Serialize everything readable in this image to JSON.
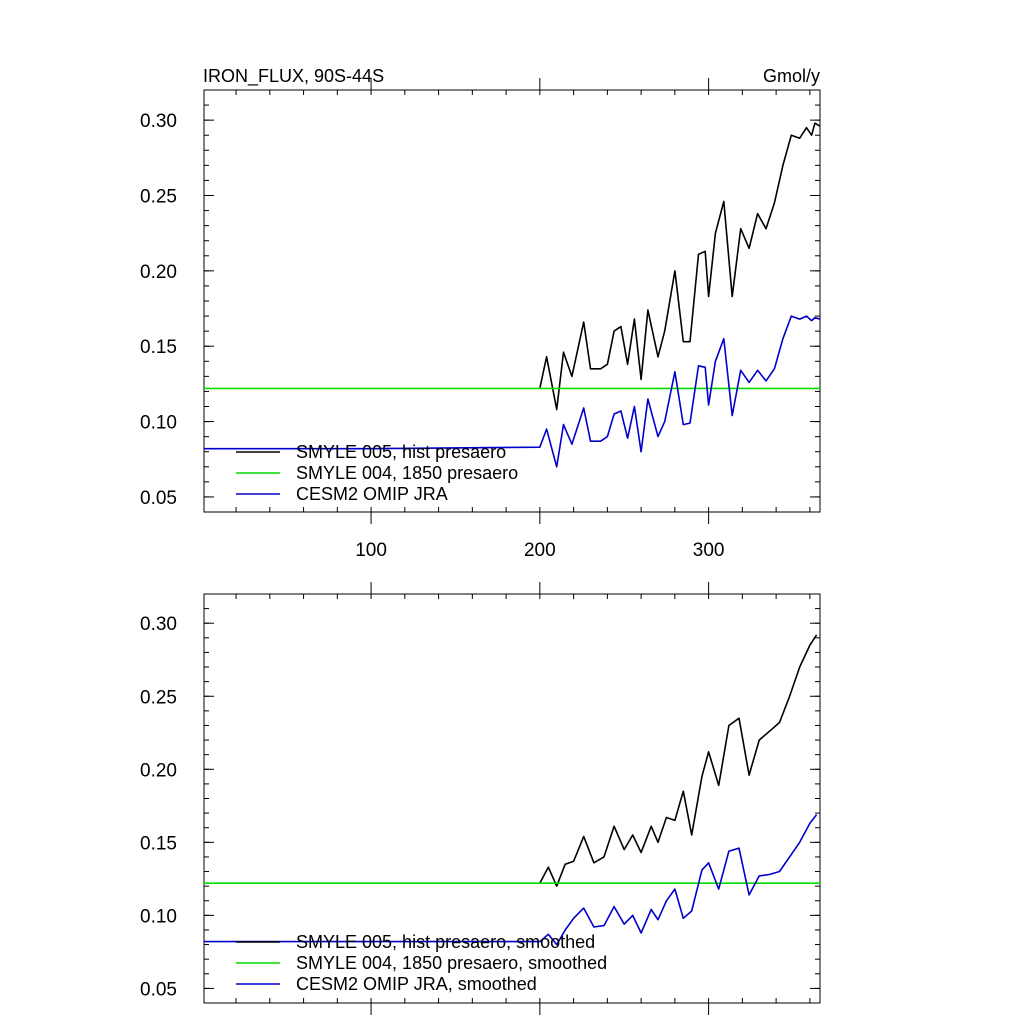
{
  "header": {
    "title": "IRON_FLUX, 90S-44S",
    "units": "Gmol/y"
  },
  "chart_data": [
    {
      "type": "line",
      "xlim": [
        1,
        366
      ],
      "ylim": [
        0.04,
        0.32
      ],
      "x_ticks": [
        100,
        200,
        300
      ],
      "x_tick_labels": [
        "100",
        "200",
        "300"
      ],
      "y_ticks": [
        0.05,
        0.1,
        0.15,
        0.2,
        0.25,
        0.3
      ],
      "y_tick_labels": [
        "0.05",
        "0.10",
        "0.15",
        "0.20",
        "0.25",
        "0.30"
      ],
      "grid": false,
      "legend_position": "bottom-left",
      "series": [
        {
          "name": "SMYLE 005, hist presaero",
          "color": "#000000",
          "x": [
            200,
            204,
            210,
            214,
            219,
            226,
            230,
            236,
            240,
            244,
            248,
            252,
            256,
            260,
            264,
            270,
            274,
            280,
            285,
            289,
            294,
            298,
            300,
            304,
            309,
            314,
            319,
            324,
            329,
            334,
            339,
            344,
            349,
            354,
            358,
            361,
            363,
            366
          ],
          "y": [
            0.122,
            0.143,
            0.108,
            0.146,
            0.13,
            0.166,
            0.135,
            0.135,
            0.138,
            0.16,
            0.163,
            0.138,
            0.168,
            0.128,
            0.174,
            0.143,
            0.16,
            0.2,
            0.153,
            0.153,
            0.211,
            0.213,
            0.183,
            0.225,
            0.246,
            0.183,
            0.228,
            0.215,
            0.238,
            0.228,
            0.245,
            0.27,
            0.29,
            0.288,
            0.295,
            0.29,
            0.298,
            0.296
          ]
        },
        {
          "name": "SMYLE 004, 1850 presaero",
          "color": "#00dd00",
          "x": [
            1,
            366
          ],
          "y": [
            0.122,
            0.122
          ]
        },
        {
          "name": "CESM2 OMIP JRA",
          "color": "#0000cc",
          "x": [
            1,
            100,
            200,
            204,
            210,
            214,
            219,
            226,
            230,
            236,
            240,
            244,
            248,
            252,
            256,
            260,
            264,
            270,
            274,
            280,
            285,
            289,
            294,
            298,
            300,
            304,
            309,
            314,
            319,
            324,
            329,
            334,
            339,
            344,
            349,
            354,
            358,
            361,
            363,
            366
          ],
          "y": [
            0.082,
            0.082,
            0.083,
            0.095,
            0.07,
            0.098,
            0.085,
            0.109,
            0.087,
            0.087,
            0.09,
            0.105,
            0.107,
            0.089,
            0.11,
            0.08,
            0.115,
            0.09,
            0.1,
            0.133,
            0.098,
            0.099,
            0.137,
            0.136,
            0.111,
            0.14,
            0.155,
            0.104,
            0.134,
            0.126,
            0.134,
            0.127,
            0.135,
            0.155,
            0.17,
            0.168,
            0.17,
            0.167,
            0.169,
            0.168
          ]
        }
      ]
    },
    {
      "type": "line",
      "xlim": [
        1,
        366
      ],
      "ylim": [
        0.04,
        0.32
      ],
      "x_ticks": [
        100,
        200,
        300
      ],
      "y_ticks": [
        0.05,
        0.1,
        0.15,
        0.2,
        0.25,
        0.3
      ],
      "y_tick_labels": [
        "0.05",
        "0.10",
        "0.15",
        "0.20",
        "0.25",
        "0.30"
      ],
      "grid": false,
      "legend_position": "bottom-left",
      "series": [
        {
          "name": "SMYLE 005, hist presaero, smoothed",
          "color": "#000000",
          "x": [
            200,
            205,
            210,
            215,
            220,
            226,
            232,
            238,
            244,
            250,
            255,
            260,
            266,
            270,
            275,
            280,
            285,
            290,
            296,
            300,
            306,
            312,
            318,
            324,
            330,
            336,
            342,
            348,
            354,
            360,
            364
          ],
          "y": [
            0.122,
            0.133,
            0.12,
            0.135,
            0.137,
            0.154,
            0.136,
            0.14,
            0.161,
            0.145,
            0.155,
            0.143,
            0.161,
            0.15,
            0.167,
            0.165,
            0.185,
            0.155,
            0.195,
            0.212,
            0.189,
            0.23,
            0.235,
            0.196,
            0.22,
            0.226,
            0.232,
            0.25,
            0.27,
            0.285,
            0.292
          ]
        },
        {
          "name": "SMYLE 004, 1850 presaero, smoothed",
          "color": "#00dd00",
          "x": [
            1,
            366
          ],
          "y": [
            0.122,
            0.122
          ]
        },
        {
          "name": "CESM2 OMIP JRA, smoothed",
          "color": "#0000cc",
          "x": [
            1,
            100,
            200,
            205,
            210,
            215,
            220,
            226,
            232,
            238,
            244,
            250,
            255,
            260,
            266,
            270,
            275,
            280,
            285,
            290,
            296,
            300,
            306,
            312,
            318,
            324,
            330,
            336,
            342,
            348,
            354,
            360,
            364
          ],
          "y": [
            0.082,
            0.082,
            0.082,
            0.087,
            0.08,
            0.09,
            0.098,
            0.105,
            0.092,
            0.093,
            0.106,
            0.094,
            0.1,
            0.088,
            0.104,
            0.097,
            0.11,
            0.118,
            0.098,
            0.103,
            0.131,
            0.136,
            0.118,
            0.144,
            0.146,
            0.114,
            0.127,
            0.128,
            0.13,
            0.14,
            0.15,
            0.163,
            0.169
          ]
        }
      ]
    }
  ]
}
